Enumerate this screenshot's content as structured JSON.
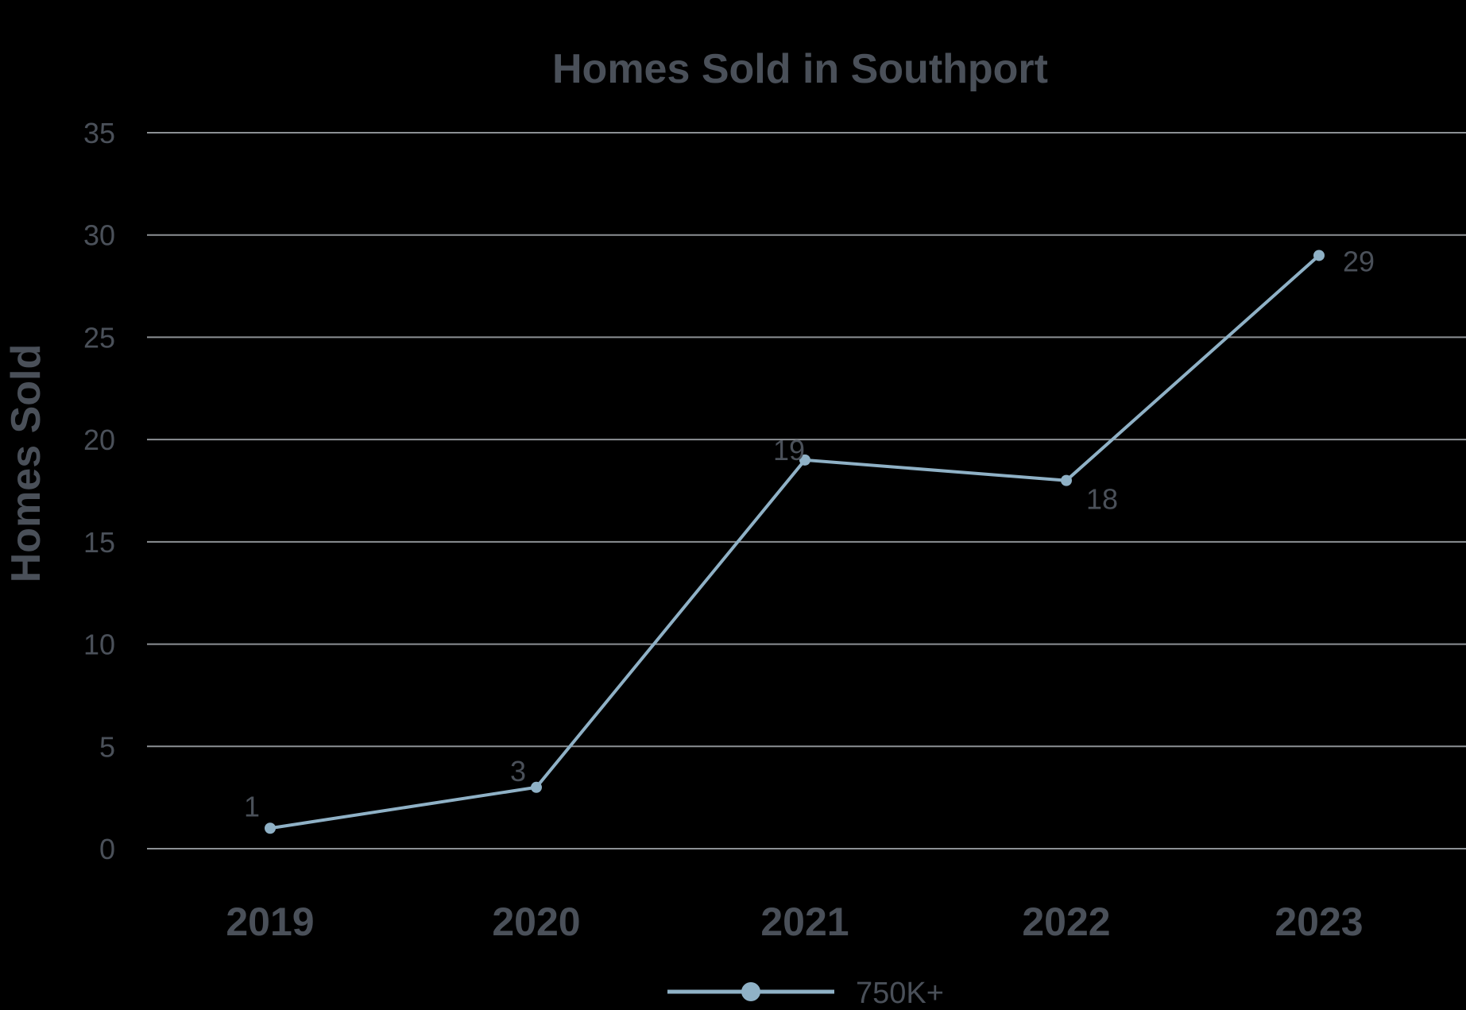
{
  "chart_data": {
    "type": "line",
    "title": "Homes Sold in Southport",
    "xlabel": "",
    "ylabel": "Homes Sold",
    "categories": [
      "2019",
      "2020",
      "2021",
      "2022",
      "2023"
    ],
    "series": [
      {
        "name": "750K+",
        "values": [
          1,
          3,
          19,
          18,
          29
        ],
        "color": "#8fb1c6"
      }
    ],
    "ylim": [
      0,
      35
    ],
    "yticks": [
      0,
      5,
      10,
      15,
      20,
      25,
      30,
      35
    ],
    "grid": true,
    "legend": "bottom"
  }
}
